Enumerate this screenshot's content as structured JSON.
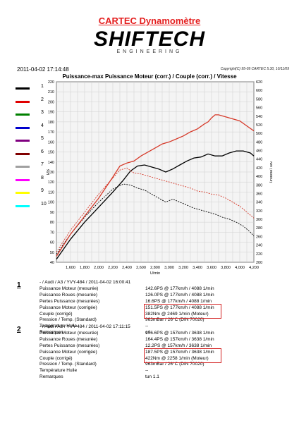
{
  "header": {
    "title": "CARTEC Dynamomètre",
    "logo": "SHIFTECH",
    "logo_sub": "ENGINEERING"
  },
  "timestamp": "2011-04-02 17:14:48",
  "copyright": "Copyright(C) 95-09 CARTEC 5.30, 10/11/09",
  "legend": [
    {
      "num": "1",
      "color": "#000000"
    },
    {
      "num": "2",
      "color": "#e00000"
    },
    {
      "num": "3",
      "color": "#008000"
    },
    {
      "num": "4",
      "color": "#0000cc"
    },
    {
      "num": "5",
      "color": "#800080"
    },
    {
      "num": "6",
      "color": "#800000"
    },
    {
      "num": "7",
      "color": "#a0a0a0"
    },
    {
      "num": "8",
      "color": "#ff00ff"
    },
    {
      "num": "9",
      "color": "#ffff00"
    },
    {
      "num": "10",
      "color": "#00ffff"
    }
  ],
  "chart_data": {
    "type": "line",
    "title": "Puissance-max Puissance Moteur (corr.) / Couple (corr.) / Vitesse",
    "xlabel": "U/min",
    "ylabel_left": "PS",
    "ylabel_right": "Nm (Moteur)",
    "xlim": [
      1400,
      4200
    ],
    "ylim_left": [
      40,
      220
    ],
    "ylim_right": [
      200,
      620
    ],
    "x_ticks": [
      "1,600",
      "1,800",
      "2,000",
      "2,200",
      "2,400",
      "2,600",
      "2,800",
      "3,000",
      "3,200",
      "3,400",
      "3,600",
      "3,800",
      "4,000",
      "4,200"
    ],
    "y_ticks_left": [
      "220",
      "210",
      "200",
      "190",
      "180",
      "170",
      "160",
      "150",
      "140",
      "130",
      "120",
      "110",
      "100",
      "90",
      "80",
      "70",
      "60",
      "50",
      "40"
    ],
    "y_ticks_right": [
      "620",
      "600",
      "580",
      "560",
      "540",
      "520",
      "500",
      "480",
      "460",
      "440",
      "420",
      "400",
      "380",
      "360",
      "340",
      "320",
      "300",
      "280",
      "260",
      "240",
      "220",
      "200"
    ],
    "grid": true,
    "series": [
      {
        "color": "#000000",
        "dash": false,
        "axis": "left",
        "x": [
          1400,
          1600,
          1800,
          2000,
          2200,
          2350,
          2450,
          2550,
          2650,
          2750,
          2850,
          2950,
          3050,
          3150,
          3250,
          3350,
          3450,
          3550,
          3650,
          3750,
          3850,
          3950,
          4050,
          4150,
          4200
        ],
        "y": [
          43,
          63,
          80,
          95,
          110,
          122,
          131,
          136,
          137,
          135,
          133,
          130,
          133,
          137,
          141,
          144,
          145,
          148,
          146,
          146,
          149,
          151,
          151,
          149,
          146
        ]
      },
      {
        "color": "#000000",
        "dash": true,
        "axis": "left",
        "x": [
          1400,
          1600,
          1800,
          2000,
          2200,
          2350,
          2450,
          2550,
          2650,
          2750,
          2850,
          2950,
          3050,
          3150,
          3250,
          3350,
          3450,
          3550,
          3650,
          3750,
          3850,
          3950,
          4050,
          4150,
          4200
        ],
        "y": [
          48,
          68,
          85,
          100,
          113,
          118,
          117,
          114,
          112,
          108,
          104,
          100,
          103,
          100,
          97,
          94,
          92,
          90,
          88,
          85,
          83,
          80,
          76,
          70,
          66
        ]
      },
      {
        "color": "#d63a2a",
        "dash": false,
        "axis": "left",
        "x": [
          1400,
          1600,
          1800,
          2000,
          2200,
          2300,
          2400,
          2500,
          2600,
          2700,
          2800,
          2900,
          3000,
          3100,
          3200,
          3300,
          3400,
          3500,
          3550,
          3600,
          3650,
          3700,
          3800,
          3900,
          4000,
          4100,
          4200
        ],
        "y": [
          46,
          68,
          86,
          104,
          125,
          136,
          139,
          141,
          146,
          150,
          154,
          158,
          160,
          163,
          166,
          170,
          173,
          178,
          180,
          184,
          187,
          187,
          185,
          183,
          181,
          176,
          171
        ]
      },
      {
        "color": "#d63a2a",
        "dash": true,
        "axis": "left",
        "x": [
          1400,
          1600,
          1800,
          2000,
          2200,
          2300,
          2400,
          2500,
          2600,
          2700,
          2800,
          2900,
          3000,
          3100,
          3200,
          3300,
          3400,
          3500,
          3600,
          3700,
          3800,
          3900,
          4000,
          4100,
          4200
        ],
        "y": [
          50,
          72,
          90,
          108,
          124,
          132,
          134,
          129,
          128,
          126,
          124,
          122,
          120,
          118,
          116,
          114,
          111,
          110,
          108,
          107,
          104,
          100,
          96,
          90,
          84
        ]
      }
    ]
  },
  "runs": [
    {
      "num": "1",
      "header": "- / Audi / A3 / YVY-484 / 2011-04-02 16:00:41",
      "rows": [
        {
          "label": "Puissance Moteur (mesurée)",
          "value": "142.6PS @ 177km/h / 4088 1/min"
        },
        {
          "label": "Puissance Roues (mesurée)",
          "value": "126.0PS @ 177km/h / 4088 1/min"
        },
        {
          "label": "Pertes Puissance (mesurées)",
          "value": "16.6PS @ 177km/h / 4088 1/min"
        },
        {
          "label": "Puissance Moteur (corrigée)",
          "value": "151.5PS @ 177km/h / 4088 1/min"
        },
        {
          "label": "Couple (corrigé)",
          "value": "382Nm @ 2469 1/min (Moteur)"
        },
        {
          "label": "Pression / Temp. (Standard)",
          "value": "963mBar / 26°C      (DIN 70020)"
        },
        {
          "label": "Température Huile",
          "value": "--"
        },
        {
          "label": "Remarques",
          "value": "ori"
        }
      ]
    },
    {
      "num": "2",
      "header": "- / Audi / A3 / YVY-484 / 2011-04-02 17:11:15",
      "rows": [
        {
          "label": "Puissance Moteur (mesurée)",
          "value": "176.6PS @ 157km/h / 3638 1/min"
        },
        {
          "label": "Puissance Roues (mesurée)",
          "value": "164.4PS @ 157km/h / 3638 1/min"
        },
        {
          "label": "Pertes Puissance (mesurées)",
          "value": "12.2PS @ 157km/h / 3638 1/min"
        },
        {
          "label": "Puissance Moteur (corrigée)",
          "value": "187.5PS @ 157km/h / 3638 1/min"
        },
        {
          "label": "Couple (corrigé)",
          "value": "422Nm @ 2258 1/min (Moteur)"
        },
        {
          "label": "Pression / Temp. (Standard)",
          "value": "963mBar / 26°C      (DIN 70020)"
        },
        {
          "label": "Température Huile",
          "value": "--"
        },
        {
          "label": "Remarques",
          "value": "tun 1.1"
        }
      ]
    }
  ]
}
